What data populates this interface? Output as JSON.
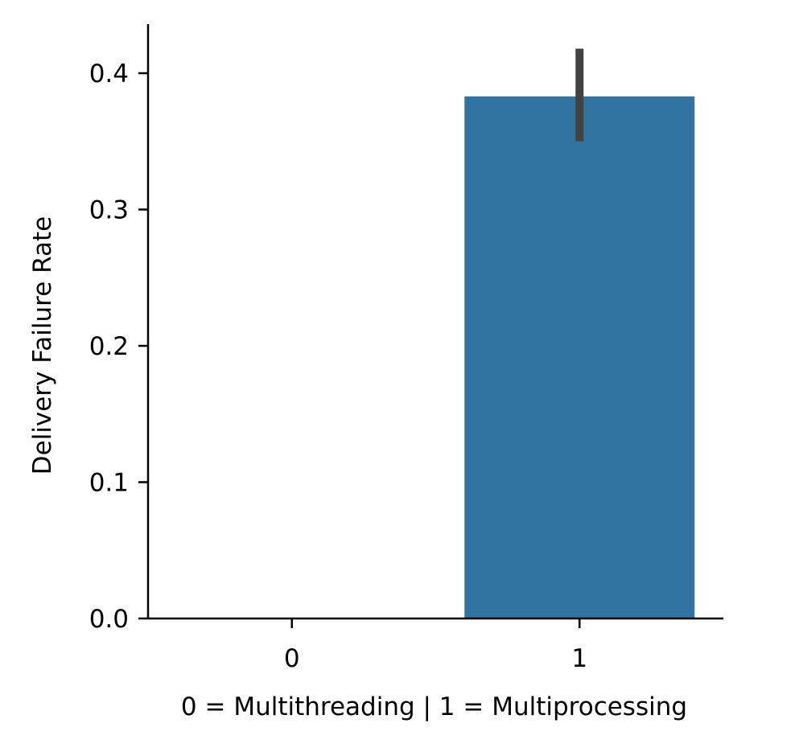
{
  "chart_data": {
    "type": "bar",
    "title": "",
    "xlabel": "0 = Multithreading | 1 = Multiprocessing",
    "ylabel": "Delivery Failure Rate",
    "categories": [
      "0",
      "1"
    ],
    "values": [
      0.0,
      0.383
    ],
    "error_bars": [
      {
        "low": null,
        "high": null
      },
      {
        "low": 0.35,
        "high": 0.418
      }
    ],
    "ylim": [
      0,
      0.436
    ],
    "yticks": [
      "0.0",
      "0.1",
      "0.2",
      "0.3",
      "0.4"
    ],
    "ytick_values": [
      0.0,
      0.1,
      0.2,
      0.3,
      0.4
    ],
    "grid": false,
    "legend": null,
    "colors": {
      "bar": "#3274a1",
      "error_bar": "#424242",
      "axis": "#000000"
    }
  }
}
